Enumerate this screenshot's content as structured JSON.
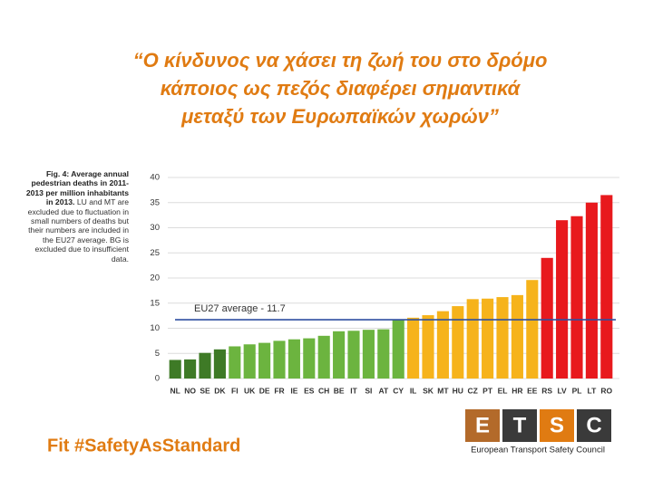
{
  "chart_data": {
    "type": "bar",
    "title": [
      "“Ο κίνδυνος να χάσει τη ζωή του στο δρόμο",
      "κάποιος ως πεζός διαφέρει σημαντικά",
      "μεταξύ των Ευρωπαϊκών χωρών”"
    ],
    "caption_bold": "Fig. 4: Average annual pedestrian deaths in 2011-2013 per million inhabitants in 2013.",
    "caption": "LU and MT are excluded due to fluctuation in small numbers of deaths but their numbers are included in the EU27 average. BG is excluded due to insufficient data.",
    "categories": [
      "NL",
      "NO",
      "SE",
      "DK",
      "FI",
      "UK",
      "DE",
      "FR",
      "IE",
      "ES",
      "CH",
      "BE",
      "IT",
      "SI",
      "AT",
      "CY",
      "IL",
      "SK",
      "MT",
      "HU",
      "CZ",
      "PT",
      "EL",
      "HR",
      "EE",
      "RS",
      "LV",
      "PL",
      "LT",
      "RO"
    ],
    "values": [
      3.7,
      3.8,
      5.1,
      5.8,
      6.4,
      6.8,
      7.1,
      7.5,
      7.8,
      8.0,
      8.5,
      9.4,
      9.5,
      9.7,
      9.8,
      11.7,
      12.1,
      12.6,
      13.4,
      14.4,
      15.8,
      15.9,
      16.2,
      16.6,
      19.6,
      24.0,
      31.5,
      32.3,
      35.0,
      36.5
    ],
    "colors": [
      "#3e7a26",
      "#3e7a26",
      "#3e7a26",
      "#3e7a26",
      "#6cb43f",
      "#6cb43f",
      "#6cb43f",
      "#6cb43f",
      "#6cb43f",
      "#6cb43f",
      "#6cb43f",
      "#6cb43f",
      "#6cb43f",
      "#6cb43f",
      "#6cb43f",
      "#6cb43f",
      "#f6b31b",
      "#f6b31b",
      "#f6b31b",
      "#f6b31b",
      "#f6b31b",
      "#f6b31b",
      "#f6b31b",
      "#f6b31b",
      "#f6b31b",
      "#e8191d",
      "#e8191d",
      "#e8191d",
      "#e8191d",
      "#e8191d"
    ],
    "ylim": [
      0,
      40
    ],
    "yticks": [
      0,
      5,
      10,
      15,
      20,
      25,
      30,
      35,
      40
    ],
    "grid": true,
    "reference_line": {
      "label": "EU27 average - 11.7",
      "value": 11.7,
      "color": "#2e4fa0"
    }
  },
  "footer": {
    "hashtag": "Fit #SafetyAsStandard",
    "logo_letters": [
      "E",
      "T",
      "S",
      "C"
    ],
    "logo_name": "European Transport Safety Council"
  }
}
